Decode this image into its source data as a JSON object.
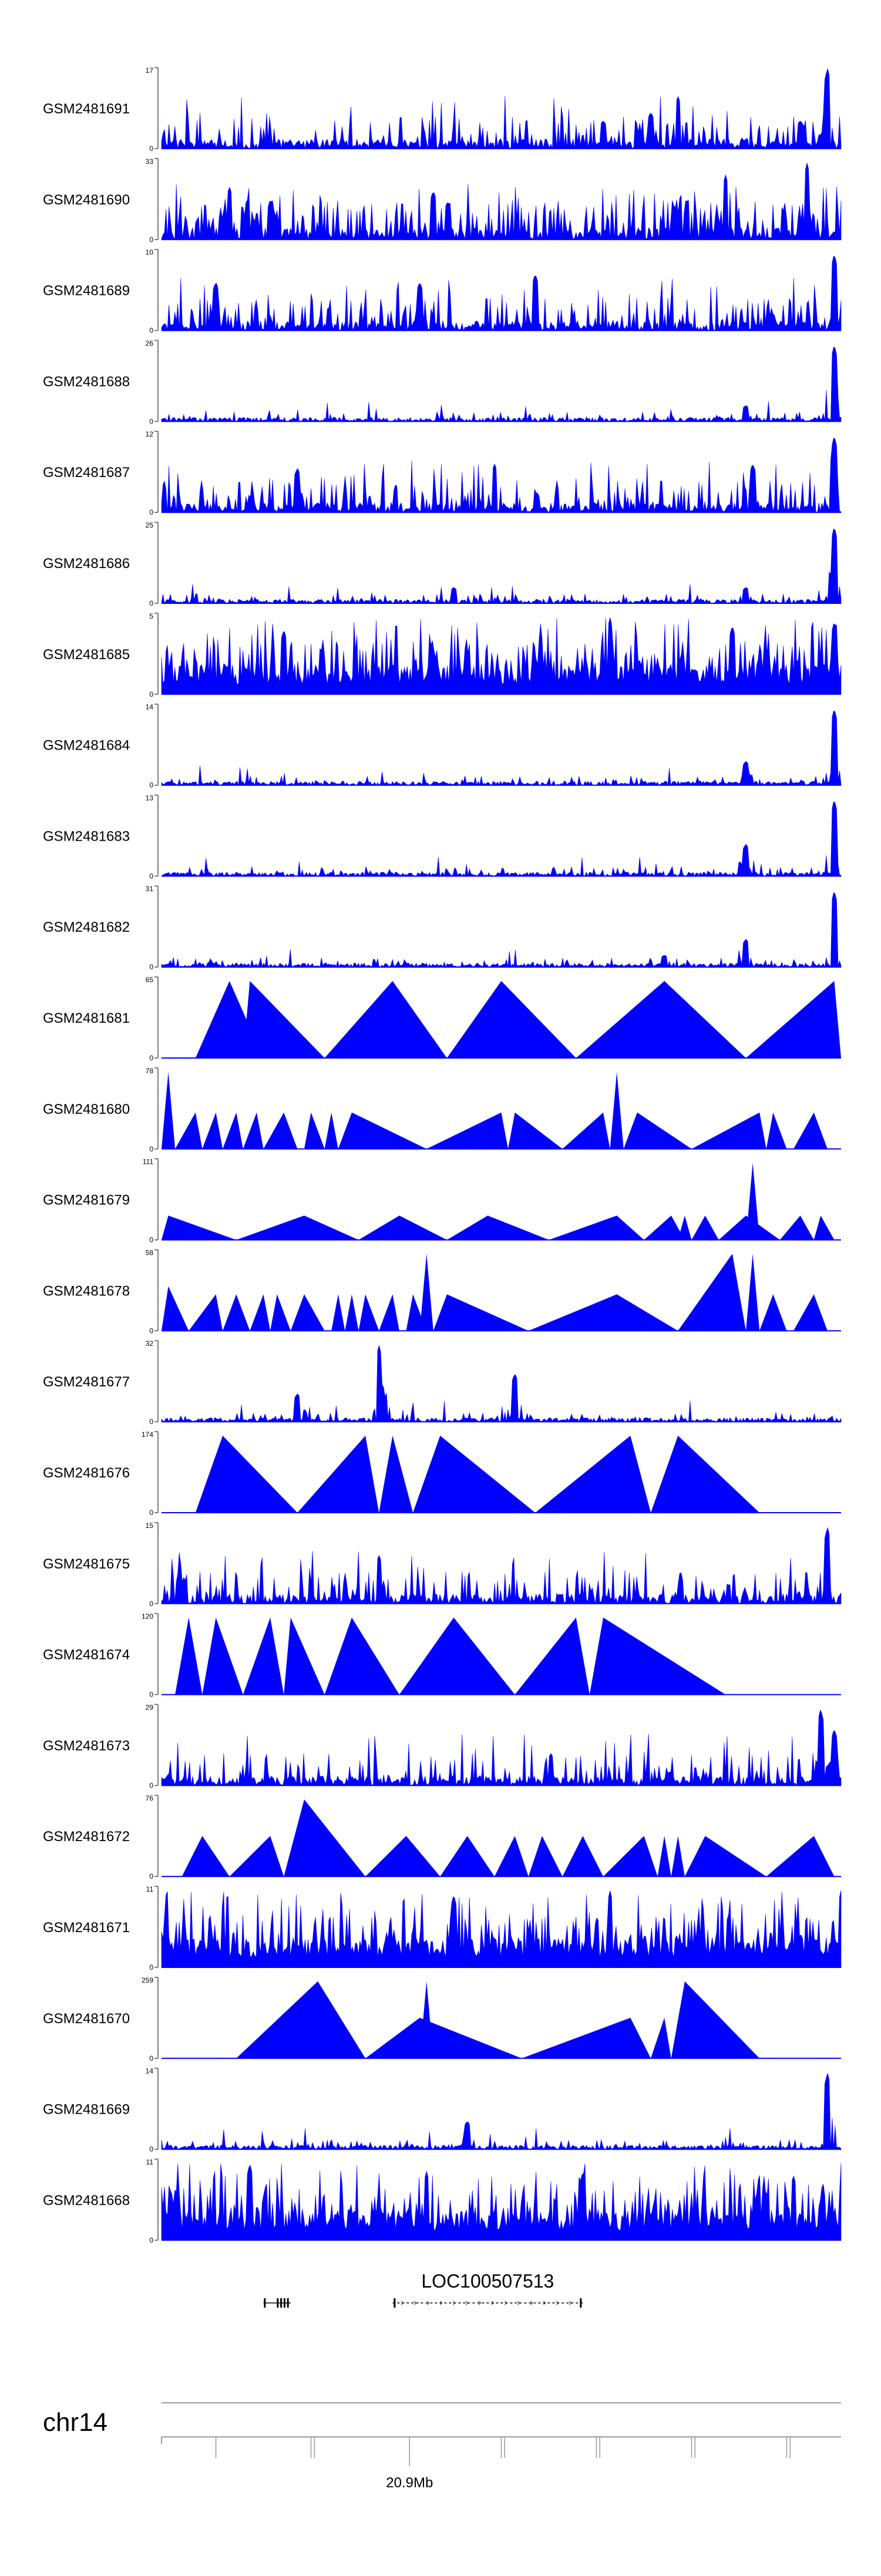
{
  "chart_data": {
    "type": "area",
    "title": "",
    "xlabel": "",
    "ylabel": "",
    "fill_color": "#0000ff",
    "tracks": [
      {
        "name": "GSM2481691",
        "ymax": "17",
        "ymin": "0",
        "style": "spiky",
        "peaks": [
          [
            0.65,
            0.35
          ],
          [
            0.72,
            0.45
          ],
          [
            0.76,
            0.65
          ],
          [
            0.94,
            0.35
          ],
          [
            0.98,
            1.0
          ]
        ]
      },
      {
        "name": "GSM2481690",
        "ymax": "33",
        "ymin": "0",
        "style": "sparse",
        "peaks": [
          [
            0.1,
            0.65
          ],
          [
            0.4,
            0.6
          ],
          [
            0.83,
            0.8
          ],
          [
            0.95,
            0.95
          ]
        ]
      },
      {
        "name": "GSM2481689",
        "ymax": "10",
        "ymin": "0",
        "style": "spiky",
        "peaks": [
          [
            0.08,
            0.6
          ],
          [
            0.38,
            0.6
          ],
          [
            0.55,
            0.7
          ],
          [
            0.99,
            0.95
          ]
        ]
      },
      {
        "name": "GSM2481688",
        "ymax": "26",
        "ymin": "0",
        "style": "low",
        "peaks": [
          [
            0.86,
            0.2
          ],
          [
            0.99,
            0.95
          ]
        ]
      },
      {
        "name": "GSM2481687",
        "ymax": "12",
        "ymin": "0",
        "style": "spiky",
        "peaks": [
          [
            0.2,
            0.55
          ],
          [
            0.49,
            0.6
          ],
          [
            0.87,
            0.6
          ],
          [
            0.99,
            0.95
          ]
        ]
      },
      {
        "name": "GSM2481686",
        "ymax": "25",
        "ymin": "0",
        "style": "low",
        "peaks": [
          [
            0.43,
            0.2
          ],
          [
            0.86,
            0.2
          ],
          [
            0.99,
            0.95
          ]
        ]
      },
      {
        "name": "GSM2481685",
        "ymax": "5",
        "ymin": "0",
        "style": "dense",
        "peaks": [
          [
            0.18,
            0.8
          ],
          [
            0.66,
            0.95
          ],
          [
            0.84,
            0.85
          ],
          [
            0.99,
            0.9
          ]
        ]
      },
      {
        "name": "GSM2481684",
        "ymax": "14",
        "ymin": "0",
        "style": "low",
        "peaks": [
          [
            0.86,
            0.3
          ],
          [
            0.99,
            0.95
          ]
        ]
      },
      {
        "name": "GSM2481683",
        "ymax": "13",
        "ymin": "0",
        "style": "low",
        "peaks": [
          [
            0.86,
            0.4
          ],
          [
            0.99,
            0.95
          ]
        ]
      },
      {
        "name": "GSM2481682",
        "ymax": "31",
        "ymin": "0",
        "style": "low",
        "peaks": [
          [
            0.74,
            0.15
          ],
          [
            0.86,
            0.35
          ],
          [
            0.99,
            0.95
          ]
        ]
      },
      {
        "name": "GSM2481681",
        "ymax": "65",
        "ymin": "0",
        "style": "triangles",
        "tri": [
          [
            0.05,
            0.1,
            0.15,
            0.95
          ],
          [
            0.12,
            0.13,
            0.24,
            0.95
          ],
          [
            0.24,
            0.34,
            0.42,
            0.95
          ],
          [
            0.42,
            0.5,
            0.61,
            0.95
          ],
          [
            0.61,
            0.74,
            0.86,
            0.95
          ],
          [
            0.86,
            0.99,
            1.0,
            0.95
          ]
        ]
      },
      {
        "name": "GSM2481680",
        "ymax": "78",
        "ymin": "0",
        "style": "triangles",
        "tri": [
          [
            0.0,
            0.01,
            0.02,
            0.95
          ],
          [
            0.02,
            0.05,
            0.06,
            0.45
          ],
          [
            0.06,
            0.08,
            0.09,
            0.45
          ],
          [
            0.09,
            0.11,
            0.12,
            0.45
          ],
          [
            0.12,
            0.14,
            0.15,
            0.45
          ],
          [
            0.15,
            0.18,
            0.2,
            0.45
          ],
          [
            0.21,
            0.22,
            0.24,
            0.45
          ],
          [
            0.24,
            0.25,
            0.26,
            0.45
          ],
          [
            0.26,
            0.28,
            0.39,
            0.45
          ],
          [
            0.39,
            0.5,
            0.51,
            0.45
          ],
          [
            0.51,
            0.52,
            0.59,
            0.45
          ],
          [
            0.59,
            0.65,
            0.66,
            0.45
          ],
          [
            0.66,
            0.67,
            0.68,
            0.95
          ],
          [
            0.68,
            0.7,
            0.78,
            0.45
          ],
          [
            0.78,
            0.88,
            0.89,
            0.45
          ],
          [
            0.89,
            0.9,
            0.92,
            0.45
          ],
          [
            0.93,
            0.96,
            0.98,
            0.45
          ]
        ]
      },
      {
        "name": "GSM2481679",
        "ymax": "111",
        "ymin": "0",
        "style": "triangles",
        "tri": [
          [
            0.0,
            0.01,
            0.11,
            0.3
          ],
          [
            0.11,
            0.21,
            0.29,
            0.3
          ],
          [
            0.29,
            0.35,
            0.42,
            0.3
          ],
          [
            0.42,
            0.48,
            0.57,
            0.3
          ],
          [
            0.57,
            0.67,
            0.71,
            0.3
          ],
          [
            0.71,
            0.75,
            0.77,
            0.3
          ],
          [
            0.76,
            0.77,
            0.78,
            0.3
          ],
          [
            0.78,
            0.8,
            0.82,
            0.3
          ],
          [
            0.82,
            0.86,
            0.91,
            0.3
          ],
          [
            0.86,
            0.87,
            0.88,
            0.95
          ],
          [
            0.91,
            0.94,
            0.96,
            0.3
          ],
          [
            0.96,
            0.97,
            0.99,
            0.3
          ]
        ]
      },
      {
        "name": "GSM2481678",
        "ymax": "58",
        "ymin": "0",
        "style": "triangles",
        "tri": [
          [
            0.0,
            0.01,
            0.04,
            0.55
          ],
          [
            0.04,
            0.08,
            0.09,
            0.45
          ],
          [
            0.09,
            0.11,
            0.13,
            0.45
          ],
          [
            0.13,
            0.15,
            0.16,
            0.45
          ],
          [
            0.16,
            0.17,
            0.19,
            0.45
          ],
          [
            0.19,
            0.21,
            0.24,
            0.45
          ],
          [
            0.25,
            0.26,
            0.27,
            0.45
          ],
          [
            0.27,
            0.28,
            0.29,
            0.45
          ],
          [
            0.29,
            0.3,
            0.32,
            0.45
          ],
          [
            0.32,
            0.34,
            0.35,
            0.45
          ],
          [
            0.36,
            0.37,
            0.39,
            0.45
          ],
          [
            0.38,
            0.39,
            0.4,
            0.95
          ],
          [
            0.4,
            0.42,
            0.54,
            0.45
          ],
          [
            0.54,
            0.67,
            0.76,
            0.45
          ],
          [
            0.76,
            0.84,
            0.86,
            0.95
          ],
          [
            0.86,
            0.87,
            0.88,
            0.95
          ],
          [
            0.88,
            0.9,
            0.92,
            0.45
          ],
          [
            0.93,
            0.96,
            0.98,
            0.45
          ]
        ]
      },
      {
        "name": "GSM2481677",
        "ymax": "32",
        "ymin": "0",
        "style": "low",
        "peaks": [
          [
            0.2,
            0.35
          ],
          [
            0.32,
            0.95
          ],
          [
            0.52,
            0.6
          ]
        ]
      },
      {
        "name": "GSM2481676",
        "ymax": "174",
        "ymin": "0",
        "style": "triangles",
        "tri": [
          [
            0.05,
            0.09,
            0.2,
            0.95
          ],
          [
            0.2,
            0.3,
            0.32,
            0.95
          ],
          [
            0.32,
            0.34,
            0.37,
            0.95
          ],
          [
            0.37,
            0.41,
            0.55,
            0.95
          ],
          [
            0.55,
            0.69,
            0.72,
            0.95
          ],
          [
            0.72,
            0.76,
            0.88,
            0.95
          ]
        ]
      },
      {
        "name": "GSM2481675",
        "ymax": "15",
        "ymin": "0",
        "style": "spiky",
        "peaks": [
          [
            0.32,
            0.6
          ],
          [
            0.98,
            0.95
          ]
        ]
      },
      {
        "name": "GSM2481674",
        "ymax": "120",
        "ymin": "0",
        "style": "triangles",
        "tri": [
          [
            0.02,
            0.04,
            0.06,
            0.95
          ],
          [
            0.06,
            0.08,
            0.12,
            0.95
          ],
          [
            0.12,
            0.16,
            0.18,
            0.95
          ],
          [
            0.18,
            0.19,
            0.24,
            0.95
          ],
          [
            0.24,
            0.28,
            0.35,
            0.95
          ],
          [
            0.35,
            0.43,
            0.52,
            0.95
          ],
          [
            0.52,
            0.61,
            0.63,
            0.95
          ],
          [
            0.63,
            0.65,
            0.83,
            0.95
          ]
        ]
      },
      {
        "name": "GSM2481673",
        "ymax": "29",
        "ymin": "0",
        "style": "spiky",
        "peaks": [
          [
            0.97,
            0.95
          ],
          [
            0.99,
            0.7
          ]
        ]
      },
      {
        "name": "GSM2481672",
        "ymax": "76",
        "ymin": "0",
        "style": "triangles",
        "tri": [
          [
            0.03,
            0.06,
            0.1,
            0.5
          ],
          [
            0.1,
            0.16,
            0.18,
            0.5
          ],
          [
            0.18,
            0.21,
            0.3,
            0.95
          ],
          [
            0.3,
            0.36,
            0.41,
            0.5
          ],
          [
            0.41,
            0.45,
            0.49,
            0.5
          ],
          [
            0.49,
            0.52,
            0.54,
            0.5
          ],
          [
            0.54,
            0.56,
            0.59,
            0.5
          ],
          [
            0.59,
            0.62,
            0.65,
            0.5
          ],
          [
            0.65,
            0.71,
            0.73,
            0.5
          ],
          [
            0.73,
            0.74,
            0.75,
            0.5
          ],
          [
            0.75,
            0.76,
            0.77,
            0.5
          ],
          [
            0.77,
            0.8,
            0.89,
            0.5
          ],
          [
            0.89,
            0.96,
            0.99,
            0.5
          ]
        ]
      },
      {
        "name": "GSM2481671",
        "ymax": "11",
        "ymin": "0",
        "style": "dense",
        "peaks": [
          [
            0.66,
            0.95
          ],
          [
            0.43,
            0.9
          ],
          [
            1.0,
            0.95
          ]
        ]
      },
      {
        "name": "GSM2481670",
        "ymax": "259",
        "ymin": "0",
        "style": "triangles",
        "tri": [
          [
            0.11,
            0.23,
            0.3,
            0.95
          ],
          [
            0.3,
            0.38,
            0.53,
            0.5
          ],
          [
            0.38,
            0.39,
            0.4,
            0.95
          ],
          [
            0.53,
            0.69,
            0.72,
            0.5
          ],
          [
            0.72,
            0.74,
            0.75,
            0.5
          ],
          [
            0.75,
            0.77,
            0.88,
            0.95
          ]
        ]
      },
      {
        "name": "GSM2481669",
        "ymax": "14",
        "ymin": "0",
        "style": "low",
        "peaks": [
          [
            0.98,
            0.95
          ],
          [
            0.45,
            0.35
          ]
        ]
      },
      {
        "name": "GSM2481668",
        "ymax": "11",
        "ymin": "0",
        "style": "dense",
        "peaks": [
          [
            0.13,
            0.95
          ],
          [
            0.39,
            0.85
          ],
          [
            0.62,
            0.85
          ],
          [
            0.93,
            0.8
          ]
        ]
      }
    ],
    "genes": [
      {
        "label": "",
        "start": 0.15,
        "end": 0.19,
        "exons": [
          0.152,
          0.171,
          0.176,
          0.181,
          0.186
        ],
        "strand": "none"
      },
      {
        "label": "LOC100507513",
        "start": 0.34,
        "end": 0.62,
        "exons": [
          0.343,
          0.617
        ],
        "strand": "right"
      }
    ],
    "chromosome": {
      "name": "chr14",
      "tick_label": "20.9Mb",
      "tick_position": 0.365,
      "minor_ticks": [
        0.08,
        0.22,
        0.5,
        0.64,
        0.78,
        0.92
      ],
      "major_ticks": [
        0.225,
        0.365,
        0.505,
        0.645,
        0.785,
        0.925
      ]
    }
  }
}
